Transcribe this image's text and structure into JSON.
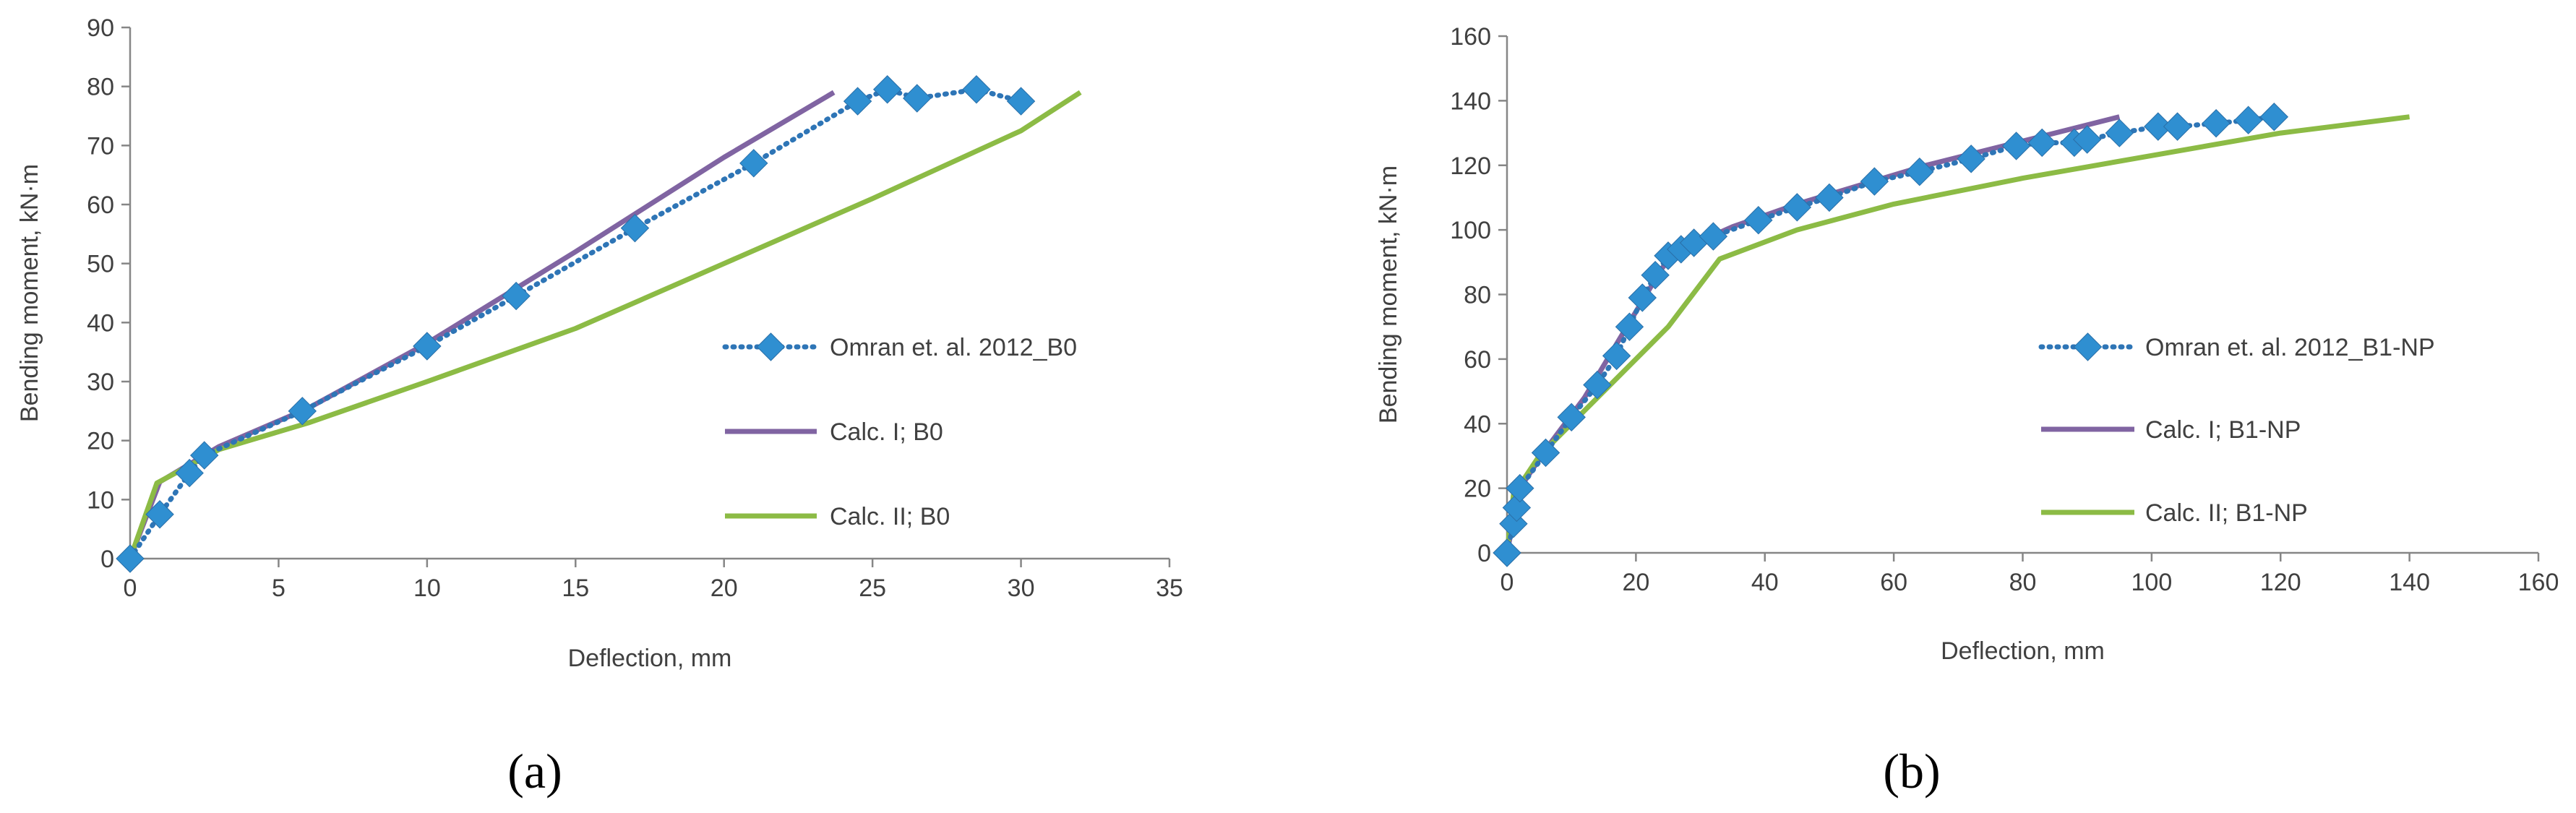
{
  "chart_data": [
    {
      "type": "line",
      "panel_label": "(a)",
      "xlabel": "Deflection, mm",
      "ylabel": "Bending moment, kN·m",
      "xlim": [
        0,
        35
      ],
      "ylim": [
        0,
        90
      ],
      "xticks": [
        0,
        5,
        10,
        15,
        20,
        25,
        30,
        35
      ],
      "yticks": [
        0,
        10,
        20,
        30,
        40,
        50,
        60,
        70,
        80,
        90
      ],
      "grid": false,
      "legend_position": "right",
      "series": [
        {
          "name": "Omran et. al. 2012_B0",
          "style": "dotted-diamond",
          "color": "#2e75b6",
          "marker_color": "#2f8fd1",
          "x": [
            0,
            1,
            2,
            2.5,
            5.8,
            10,
            13,
            17,
            21,
            24.5,
            25.5,
            26.5,
            28.5,
            30
          ],
          "y": [
            0,
            7.5,
            14.5,
            17.5,
            25,
            36,
            44.5,
            56,
            67,
            77.5,
            79.5,
            78,
            79.5,
            77.5
          ]
        },
        {
          "name": "Calc. I; B0",
          "style": "solid",
          "color": "#8064a2",
          "x": [
            0,
            1,
            3,
            6,
            10,
            15,
            20,
            23.7
          ],
          "y": [
            0,
            13,
            19,
            25.5,
            36.5,
            52,
            68,
            79
          ]
        },
        {
          "name": "Calc. II; B0",
          "style": "solid",
          "color": "#8cbb45",
          "x": [
            0,
            0.9,
            3,
            6,
            10,
            15,
            20,
            25,
            30,
            32
          ],
          "y": [
            0,
            12.8,
            18.5,
            23,
            30,
            39,
            50,
            61,
            72.5,
            79
          ]
        }
      ]
    },
    {
      "type": "line",
      "panel_label": "(b)",
      "xlabel": "Deflection, mm",
      "ylabel": "Bending moment, kN·m",
      "xlim": [
        0,
        160
      ],
      "ylim": [
        0,
        160
      ],
      "xticks": [
        0,
        20,
        40,
        60,
        80,
        100,
        120,
        140,
        160
      ],
      "yticks": [
        0,
        20,
        40,
        60,
        80,
        100,
        120,
        140,
        160
      ],
      "grid": false,
      "legend_position": "right",
      "series": [
        {
          "name": "Omran et. al. 2012_B1-NP",
          "style": "dotted-diamond",
          "color": "#2e75b6",
          "marker_color": "#2f8fd1",
          "x": [
            0,
            1,
            1.5,
            2,
            6,
            10,
            14,
            17,
            19,
            21,
            23,
            25,
            27,
            29,
            32,
            39,
            45,
            50,
            57,
            64,
            72,
            79,
            83,
            88,
            90,
            95,
            101,
            104,
            110,
            115,
            119
          ],
          "y": [
            0,
            9,
            14,
            20,
            31,
            42,
            52,
            61,
            70,
            79,
            86,
            92,
            94,
            96,
            98,
            103,
            107,
            110,
            115,
            118,
            122,
            126,
            127,
            127,
            128,
            130,
            132,
            132,
            133,
            134,
            135
          ]
        },
        {
          "name": "Calc. I; B1-NP",
          "style": "solid",
          "color": "#8064a2",
          "x": [
            0,
            2,
            6,
            12,
            18,
            24,
            26,
            35,
            45,
            55,
            65,
            75,
            85,
            95
          ],
          "y": [
            0,
            20,
            32,
            48,
            68,
            88,
            93,
            101,
            108,
            114,
            120,
            125,
            130,
            135
          ]
        },
        {
          "name": "Calc. II; B1-NP",
          "style": "solid",
          "color": "#8cbb45",
          "x": [
            0,
            1,
            5,
            15,
            25,
            33,
            45,
            60,
            80,
            100,
            120,
            140
          ],
          "y": [
            0,
            18,
            30,
            50,
            70,
            91,
            100,
            108,
            116,
            123,
            130,
            135
          ]
        }
      ]
    }
  ]
}
